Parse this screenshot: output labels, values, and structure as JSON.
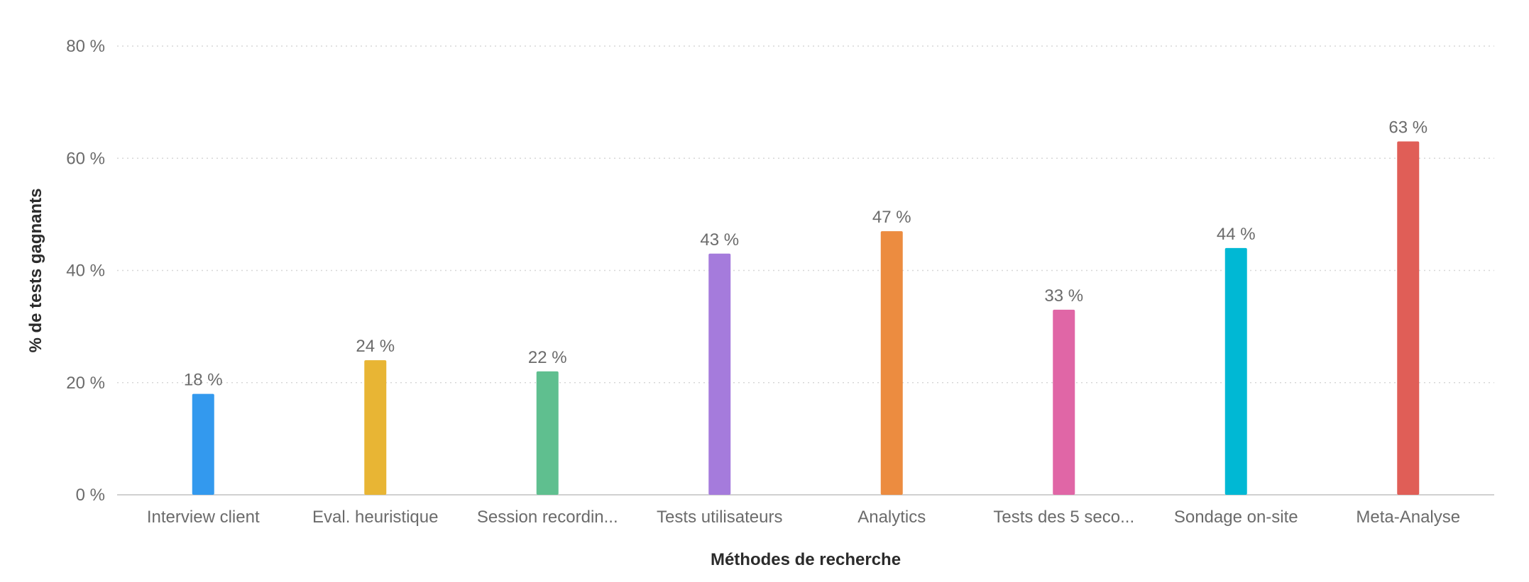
{
  "chart_data": {
    "type": "bar",
    "categories": [
      "Interview client",
      "Eval. heuristique",
      "Session recordin...",
      "Tests utilisateurs",
      "Analytics",
      "Tests des 5 seco...",
      "Sondage on-site",
      "Meta-Analyse"
    ],
    "values": [
      18,
      24,
      22,
      43,
      47,
      33,
      44,
      63
    ],
    "value_labels": [
      "18 %",
      "24 %",
      "22 %",
      "43 %",
      "47 %",
      "33 %",
      "44 %",
      "63 %"
    ],
    "colors": [
      "#3399ee",
      "#e8b534",
      "#5fbf8f",
      "#a57bdc",
      "#ec8c40",
      "#e066a6",
      "#00b8d4",
      "#e05e57"
    ],
    "xlabel": "Méthodes de recherche",
    "ylabel": "% de tests gagnants",
    "ylim": [
      0,
      80
    ],
    "yticks": [
      0,
      20,
      40,
      60,
      80
    ],
    "ytick_labels": [
      "0 %",
      "20 %",
      "40 %",
      "60 %",
      "80 %"
    ],
    "grid": true,
    "legend": "none"
  }
}
